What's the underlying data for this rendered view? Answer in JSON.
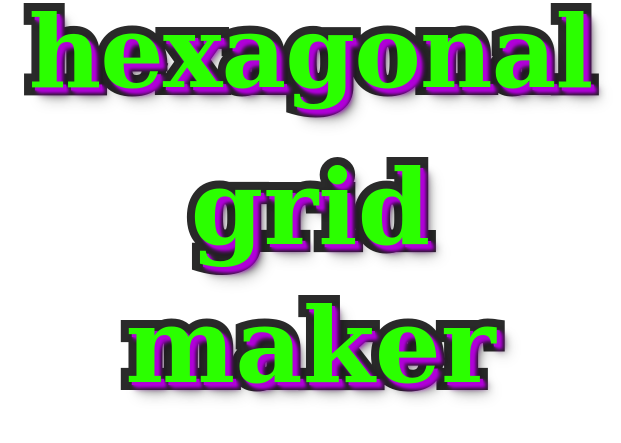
{
  "title": {
    "lines": [
      "hexagonal",
      "grid",
      "maker"
    ]
  },
  "colors": {
    "fill": "#2bff00",
    "outline": "#2a2a2a",
    "glow": "#b000d8",
    "background": "#ffffff"
  }
}
